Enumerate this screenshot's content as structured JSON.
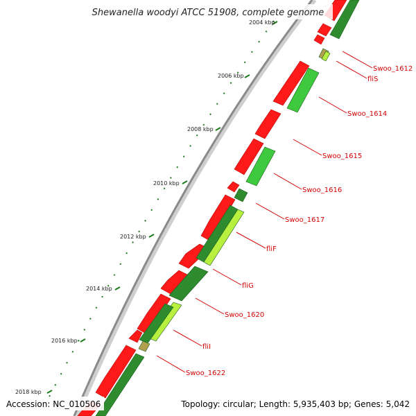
{
  "title": "Shewanella woodyi ATCC 51908, complete genome",
  "accession_text": "Accession: NC_010506",
  "summary_text": "Topology: circular; Length: 5,935,403 bp; Genes: 5,042",
  "colors": {
    "forward_gene": "#ff1a1a",
    "reverse_gene_dark": "#2e8b2e",
    "reverse_gene_light": "#3ec93e",
    "reverse_gene_lime": "#b8f040",
    "gene_khaki": "#b0a050",
    "backbone": "#9a9a9a",
    "tick": "#1a7a1a",
    "label": "#d40000"
  },
  "ruler": [
    {
      "label": "2004 kbp"
    },
    {
      "label": "2006 kbp"
    },
    {
      "label": "2008 kbp"
    },
    {
      "label": "2010 kbp"
    },
    {
      "label": "2012 kbp"
    },
    {
      "label": "2014 kbp"
    },
    {
      "label": "2016 kbp"
    },
    {
      "label": "2018 kbp"
    }
  ],
  "gene_labels": [
    {
      "name": "Swoo_1612"
    },
    {
      "name": "fliS"
    },
    {
      "name": "Swoo_1614"
    },
    {
      "name": "Swoo_1615"
    },
    {
      "name": "Swoo_1616"
    },
    {
      "name": "Swoo_1617"
    },
    {
      "name": "fliF"
    },
    {
      "name": "fliG"
    },
    {
      "name": "Swoo_1620"
    },
    {
      "name": "fliI"
    },
    {
      "name": "Swoo_1622"
    }
  ]
}
